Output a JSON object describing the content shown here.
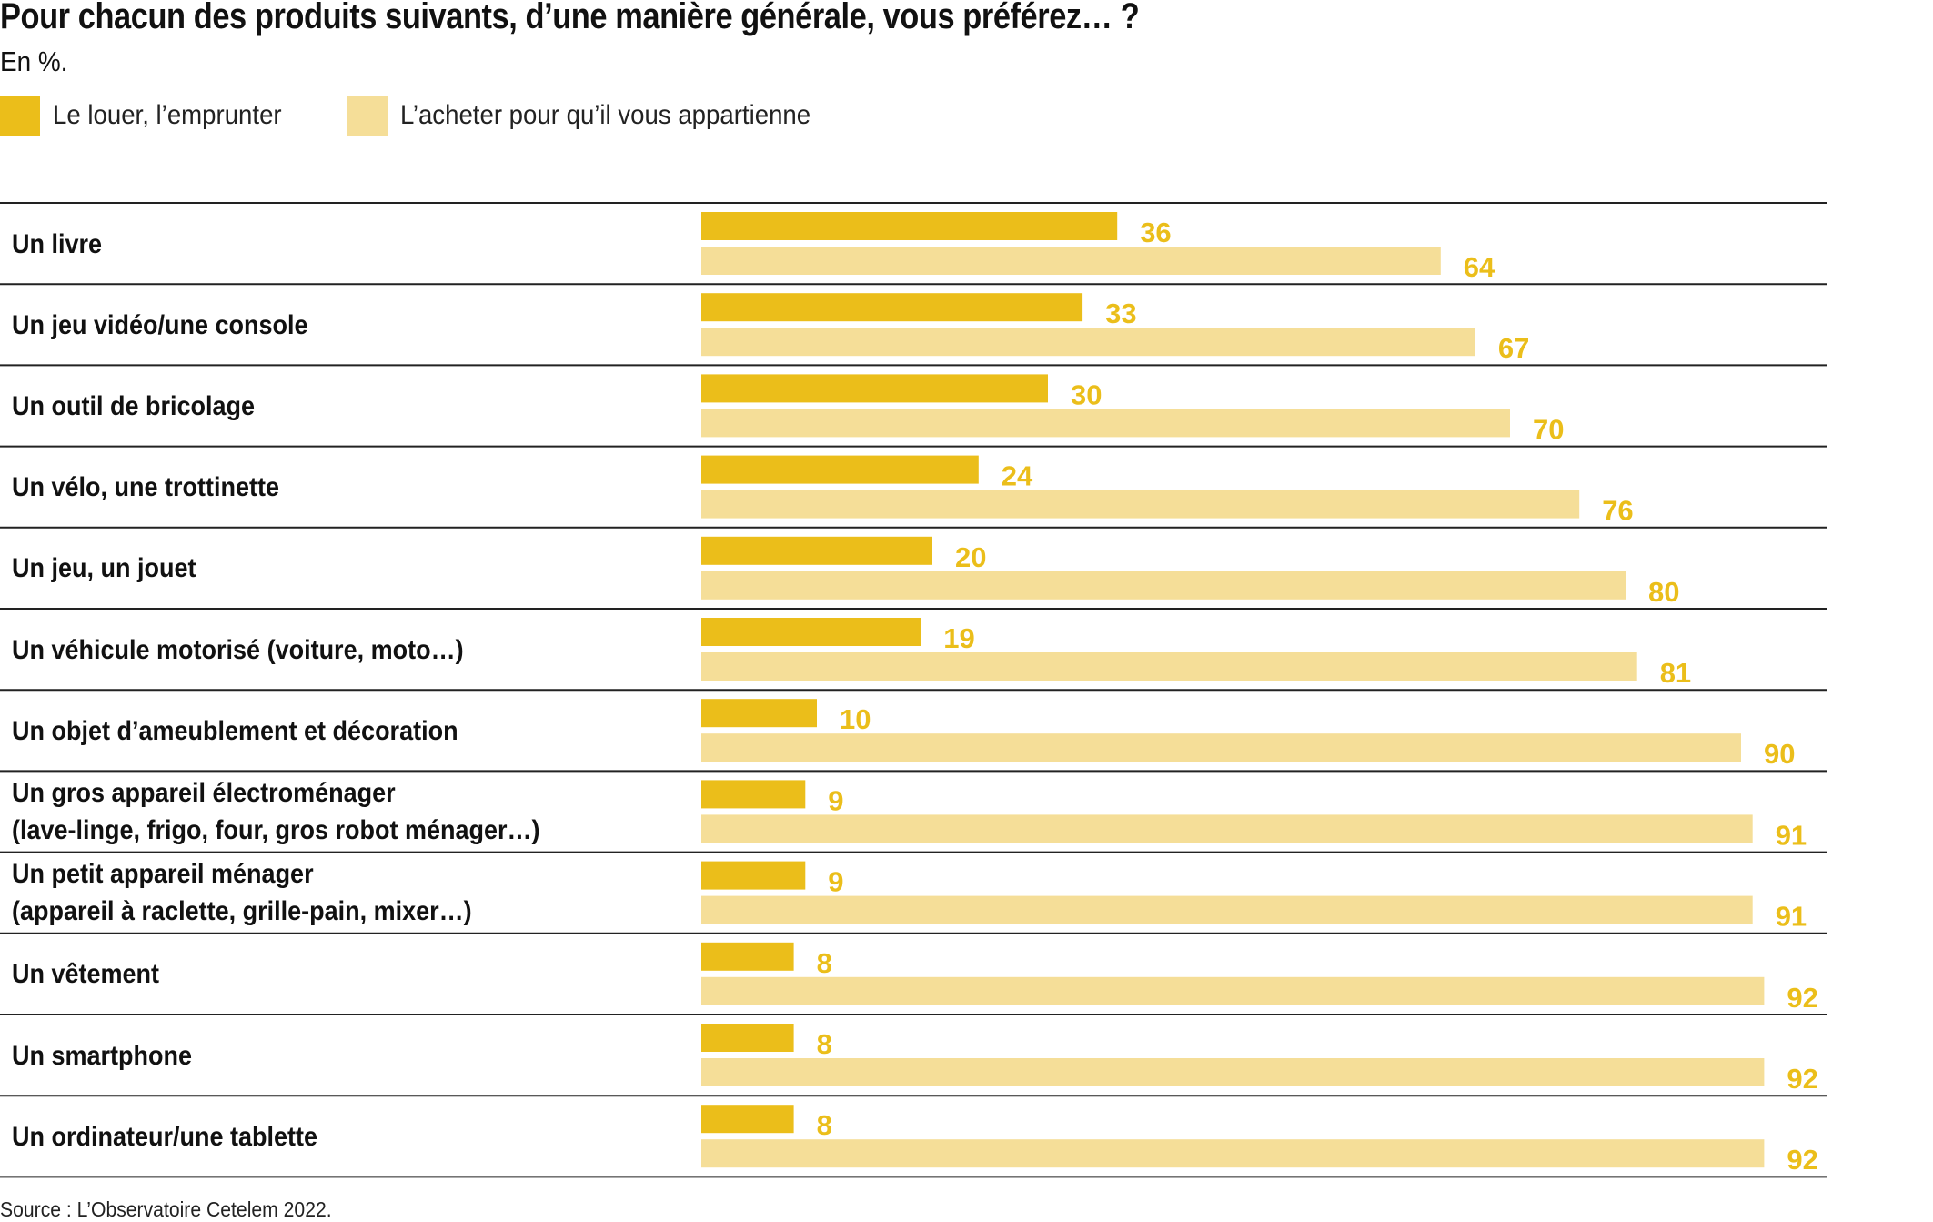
{
  "chart_data": {
    "type": "bar",
    "orientation": "horizontal",
    "title": "Pour chacun des produits suivants, d’une manière générale, vous préférez… ?",
    "subtitle": "En %.",
    "categories": [
      [
        "Un livre"
      ],
      [
        "Un jeu vidéo/une console"
      ],
      [
        "Un outil de bricolage"
      ],
      [
        "Un vélo, une trottinette"
      ],
      [
        "Un jeu, un jouet"
      ],
      [
        "Un véhicule motorisé (voiture, moto…)"
      ],
      [
        "Un objet d’ameublement et décoration"
      ],
      [
        "Un gros appareil électroménager",
        "(lave-linge, frigo, four, gros robot ménager…)"
      ],
      [
        "Un petit appareil ménager",
        "(appareil à raclette, grille-pain, mixer…)"
      ],
      [
        "Un vêtement"
      ],
      [
        "Un smartphone"
      ],
      [
        "Un ordinateur/une tablette"
      ]
    ],
    "series": [
      {
        "name": "Le louer, l’emprunter",
        "color": "#ebbe1a",
        "values": [
          36,
          33,
          30,
          24,
          20,
          19,
          10,
          9,
          9,
          8,
          8,
          8
        ]
      },
      {
        "name": "L’acheter pour qu’il vous appartienne",
        "color": "#f5de98",
        "values": [
          64,
          67,
          70,
          76,
          80,
          81,
          90,
          91,
          91,
          92,
          92,
          92
        ]
      }
    ],
    "value_label_color": "#ebbe1a",
    "xlim": [
      0,
      100
    ],
    "legend_position": "top-left",
    "grid": false,
    "source": "Source : L’Observatoire Cetelem 2022."
  }
}
